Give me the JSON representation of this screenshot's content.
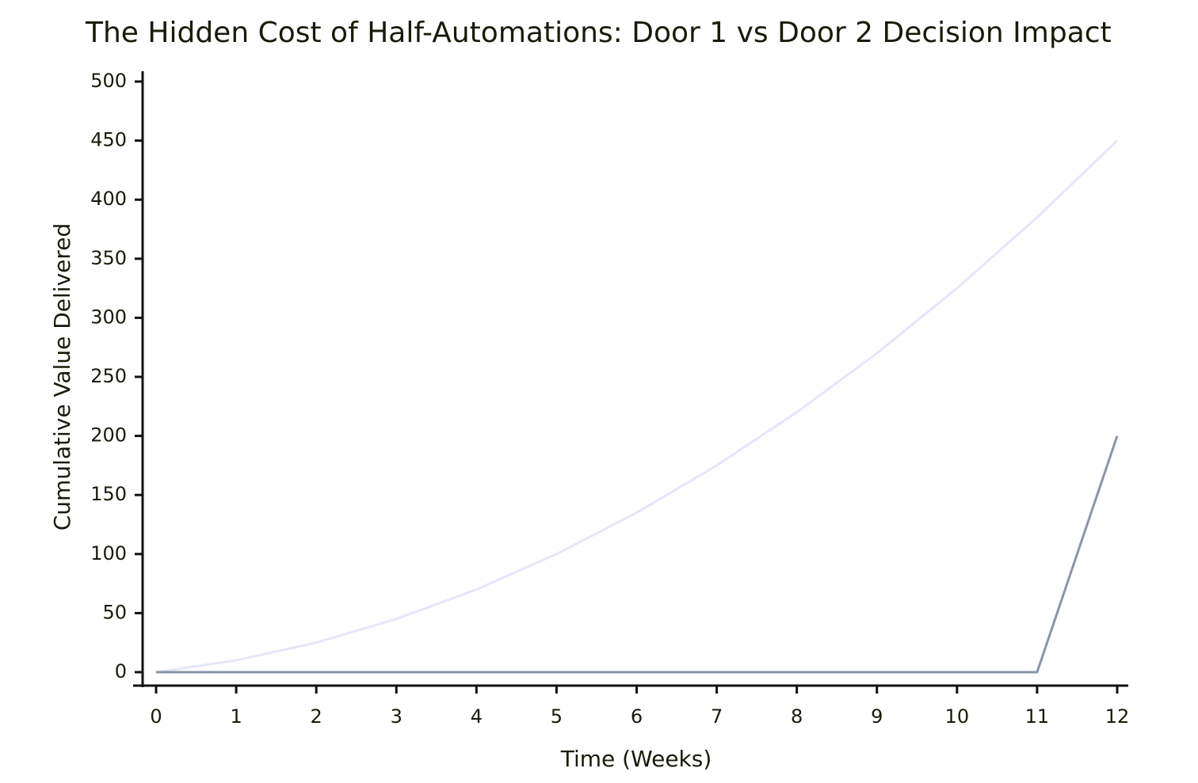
{
  "chart_data": {
    "type": "line",
    "title": "The Hidden Cost of Half-Automations: Door 1 vs Door 2 Decision Impact",
    "x_label": "Time (Weeks)",
    "y_label": "Cumulative Value Delivered",
    "x": [
      0,
      1,
      2,
      3,
      4,
      5,
      6,
      7,
      8,
      9,
      10,
      11,
      12
    ],
    "series": [
      {
        "color": "#e6e6fa",
        "values": [
          0,
          10,
          25,
          45,
          70,
          100,
          135,
          175,
          220,
          270,
          325,
          385,
          450
        ]
      },
      {
        "color": "#8a96a8",
        "values": [
          0,
          0,
          0,
          0,
          0,
          0,
          0,
          0,
          0,
          0,
          0,
          0,
          200
        ]
      }
    ],
    "xlim": [
      0,
      12
    ],
    "xticks": [
      0,
      1,
      2,
      3,
      4,
      5,
      6,
      7,
      8,
      9,
      10,
      11,
      12
    ],
    "ylim": [
      0,
      500
    ],
    "yticks": [
      0,
      50,
      100,
      150,
      200,
      250,
      300,
      350,
      400,
      450,
      500
    ],
    "grid": false
  }
}
